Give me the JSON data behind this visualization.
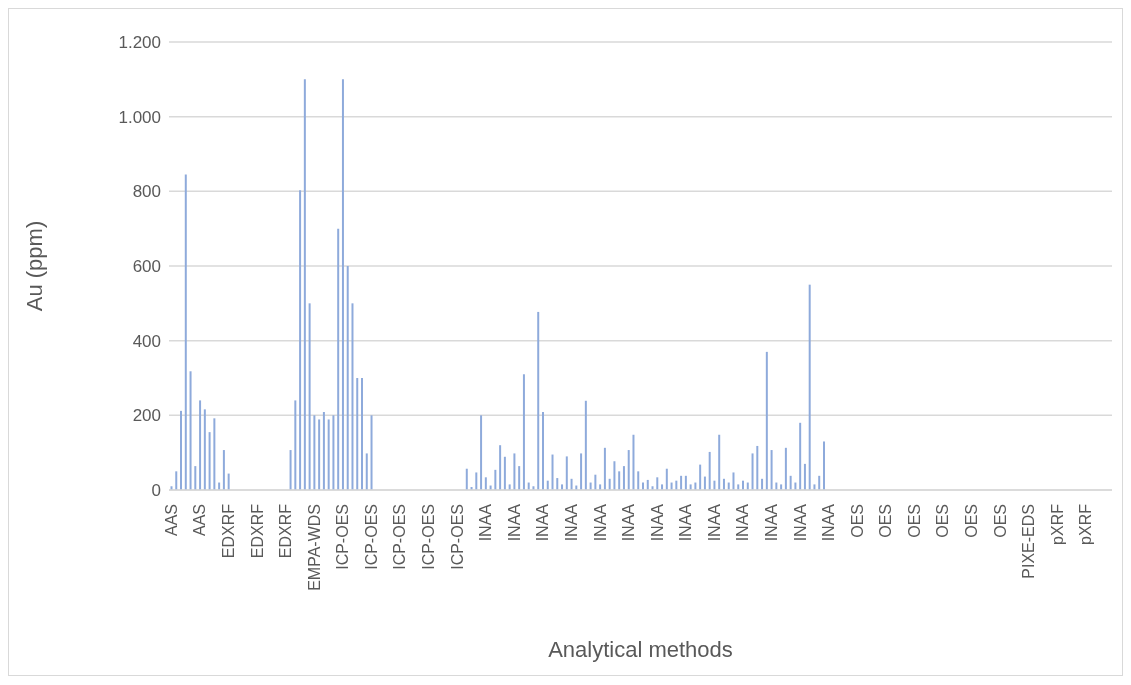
{
  "chart_data": {
    "type": "bar",
    "xlabel": "Analytical methods",
    "ylabel": "Au (ppm)",
    "categories": [
      "AAS",
      null,
      null,
      null,
      null,
      null,
      "AAS",
      null,
      null,
      null,
      null,
      null,
      "EDXRF",
      null,
      null,
      null,
      null,
      null,
      "EDXRF",
      null,
      null,
      null,
      null,
      null,
      "EDXRF",
      null,
      null,
      null,
      null,
      null,
      "EMPA-WDS",
      null,
      null,
      null,
      null,
      null,
      "ICP-OES",
      null,
      null,
      null,
      null,
      null,
      "ICP-OES",
      null,
      null,
      null,
      null,
      null,
      "ICP-OES",
      null,
      null,
      null,
      null,
      null,
      "ICP-OES",
      null,
      null,
      null,
      null,
      null,
      "ICP-OES",
      null,
      null,
      null,
      null,
      null,
      "INAA",
      null,
      null,
      null,
      null,
      null,
      "INAA",
      null,
      null,
      null,
      null,
      null,
      "INAA",
      null,
      null,
      null,
      null,
      null,
      "INAA",
      null,
      null,
      null,
      null,
      null,
      "INAA",
      null,
      null,
      null,
      null,
      null,
      "INAA",
      null,
      null,
      null,
      null,
      null,
      "INAA",
      null,
      null,
      null,
      null,
      null,
      "INAA",
      null,
      null,
      null,
      null,
      null,
      "INAA",
      null,
      null,
      null,
      null,
      null,
      "INAA",
      null,
      null,
      null,
      null,
      null,
      "INAA",
      null,
      null,
      null,
      null,
      null,
      "INAA",
      null,
      null,
      null,
      null,
      null,
      "INAA",
      null,
      null,
      null,
      null,
      null,
      "OES",
      null,
      null,
      null,
      null,
      null,
      "OES",
      null,
      null,
      null,
      null,
      null,
      "OES",
      null,
      null,
      null,
      null,
      null,
      "OES",
      null,
      null,
      null,
      null,
      null,
      "OES",
      null,
      null,
      null,
      null,
      null,
      "OES",
      null,
      null,
      null,
      null,
      null,
      "PIXE-EDS",
      null,
      null,
      null,
      null,
      null,
      "pXRF",
      null,
      null,
      null,
      null,
      null,
      "pXRF",
      null,
      null,
      null,
      null,
      null
    ],
    "values": [
      10,
      50,
      212,
      845,
      318,
      64,
      240,
      216,
      155,
      192,
      20,
      107,
      44,
      0,
      0,
      0,
      0,
      0,
      0,
      0,
      0,
      0,
      0,
      0,
      0,
      107,
      240,
      803,
      1100,
      500,
      200,
      189,
      209,
      189,
      200,
      700,
      1100,
      600,
      500,
      300,
      300,
      98,
      200,
      0,
      0,
      0,
      0,
      0,
      0,
      0,
      0,
      0,
      0,
      0,
      0,
      0,
      0,
      0,
      0,
      0,
      0,
      0,
      57,
      8,
      47,
      200,
      34,
      12,
      54,
      120,
      89,
      15,
      98,
      64,
      310,
      20,
      10,
      477,
      209,
      25,
      95,
      32,
      15,
      90,
      30,
      12,
      98,
      239,
      20,
      41,
      15,
      113,
      30,
      77,
      50,
      64,
      107,
      148,
      50,
      20,
      27,
      10,
      34,
      15,
      57,
      20,
      25,
      38,
      38,
      15,
      20,
      68,
      36,
      102,
      25,
      148,
      30,
      20,
      47,
      15,
      25,
      20,
      98,
      118,
      30,
      370,
      107,
      20,
      15,
      113,
      38,
      20,
      180,
      70,
      550,
      15,
      38,
      130,
      0,
      0,
      0,
      0,
      0,
      0,
      0,
      0,
      0,
      0,
      0,
      0,
      0,
      0,
      0,
      0,
      0,
      0,
      0,
      0,
      0,
      0,
      0,
      0,
      0,
      0,
      0,
      0,
      0,
      0,
      0,
      0,
      0,
      0,
      0,
      0,
      0,
      0,
      0,
      0,
      0,
      0,
      0,
      0,
      0,
      0,
      0,
      0,
      0,
      0,
      0,
      0,
      0,
      0,
      0,
      0,
      0,
      0,
      0,
      0
    ],
    "color": "#8eaadb",
    "ylim": [
      0,
      1200
    ],
    "yticks": [
      0,
      200,
      400,
      600,
      800,
      {
        "value": 1000,
        "label": "1.000"
      },
      {
        "value": 1200,
        "label": "1.200"
      }
    ],
    "grid": "y"
  }
}
